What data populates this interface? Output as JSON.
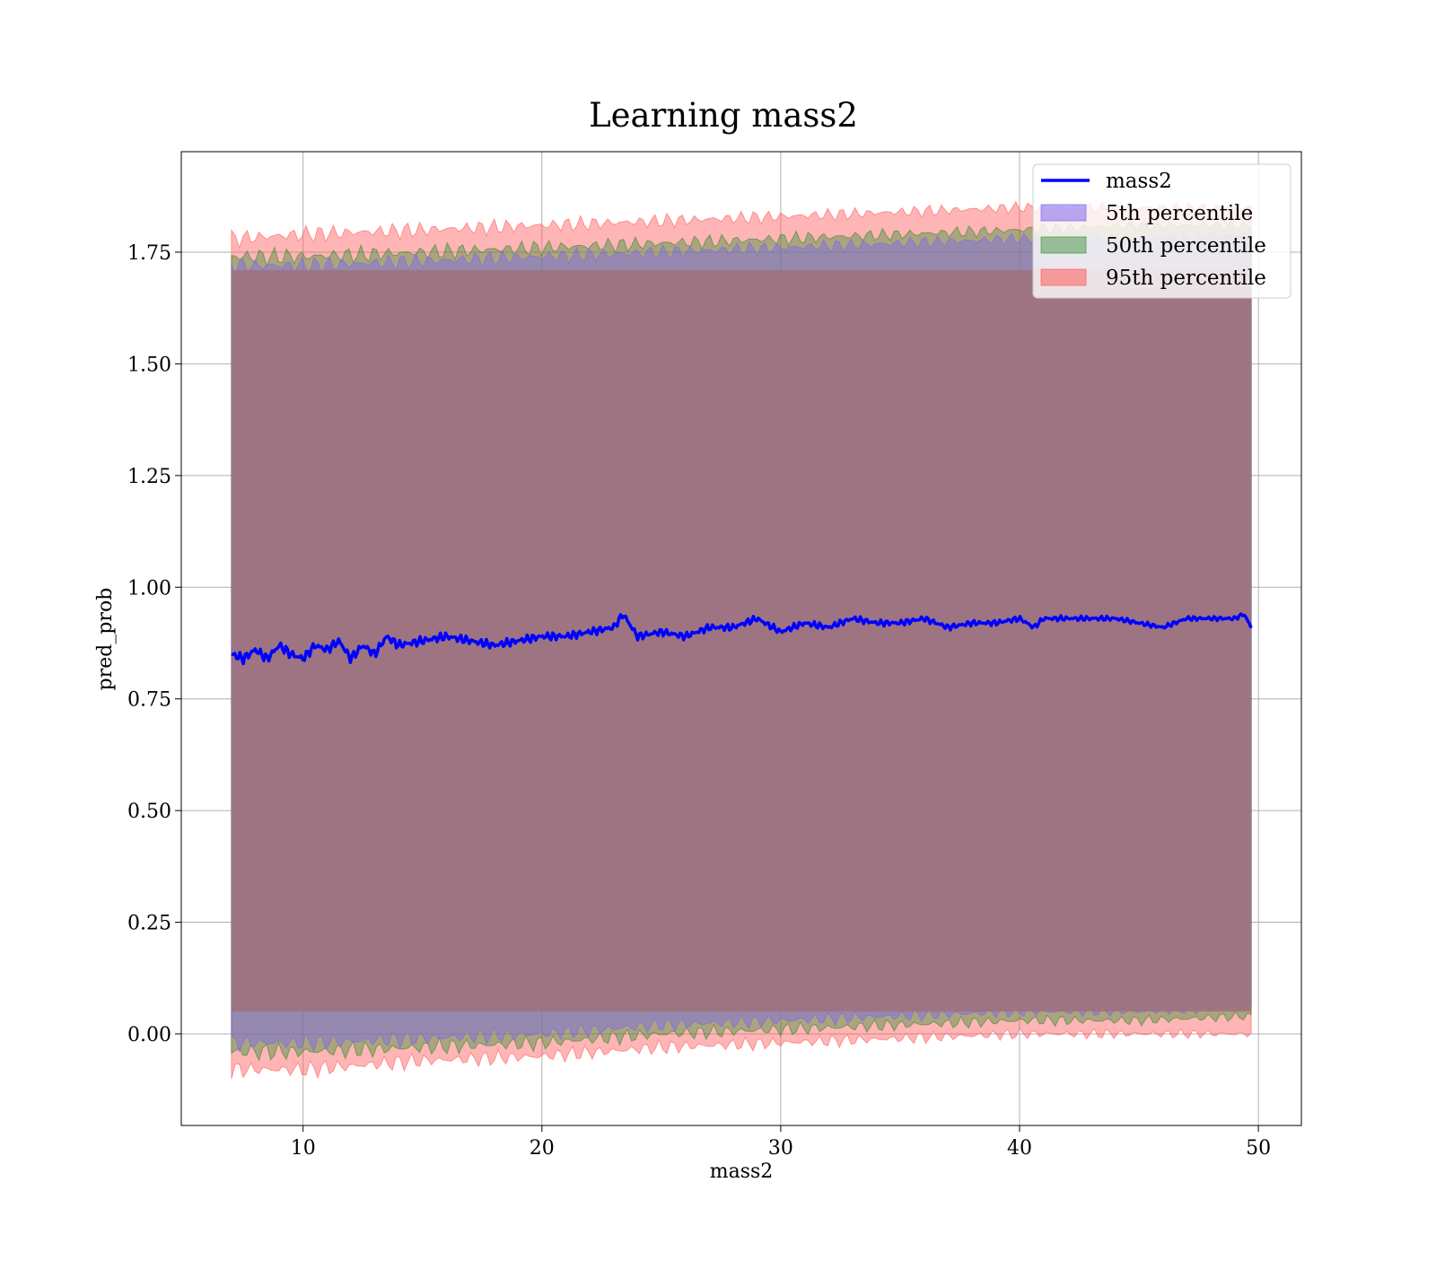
{
  "chart_data": {
    "type": "line",
    "title": "Learning mass2",
    "xlabel": "mass2",
    "ylabel": "pred_prob",
    "xlim": [
      4.9,
      51.8
    ],
    "ylim": [
      -0.205,
      1.975
    ],
    "xticks": [
      10,
      20,
      30,
      40,
      50
    ],
    "yticks": [
      0.0,
      0.25,
      0.5,
      0.75,
      1.0,
      1.25,
      1.5,
      1.75
    ],
    "ytick_labels": [
      "0.00",
      "0.25",
      "0.50",
      "0.75",
      "1.00",
      "1.25",
      "1.50",
      "1.75"
    ],
    "grid": true,
    "legend_position": "top-right",
    "colors": {
      "line": "#0000ff",
      "band_5th": "#7b68ee",
      "band_50th": "#2e8b2e",
      "band_95th": "#ff5c5c",
      "overlap": "#a0717a"
    },
    "series": [
      {
        "name": "mass2",
        "kind": "line",
        "x": [
          7.0,
          7.5,
          8.0,
          8.5,
          9.0,
          9.5,
          10.0,
          10.5,
          11.0,
          11.5,
          12.0,
          12.5,
          13.0,
          13.5,
          14.0,
          15.0,
          16.0,
          17.0,
          18.0,
          19.0,
          20.0,
          21.0,
          22.0,
          23.0,
          23.4,
          24.0,
          25.0,
          26.0,
          27.0,
          28.0,
          29.0,
          30.0,
          31.0,
          32.0,
          33.0,
          34.0,
          35.0,
          36.0,
          37.0,
          38.0,
          39.0,
          40.0,
          40.6,
          41.0,
          42.0,
          43.0,
          44.0,
          45.0,
          46.0,
          47.0,
          48.0,
          49.0,
          49.4,
          49.7
        ],
        "y": [
          0.85,
          0.84,
          0.86,
          0.84,
          0.87,
          0.85,
          0.84,
          0.87,
          0.86,
          0.88,
          0.84,
          0.87,
          0.85,
          0.89,
          0.87,
          0.88,
          0.89,
          0.88,
          0.87,
          0.88,
          0.89,
          0.89,
          0.9,
          0.91,
          0.94,
          0.89,
          0.9,
          0.89,
          0.91,
          0.91,
          0.93,
          0.9,
          0.92,
          0.91,
          0.93,
          0.92,
          0.92,
          0.93,
          0.91,
          0.92,
          0.92,
          0.93,
          0.91,
          0.93,
          0.93,
          0.93,
          0.93,
          0.92,
          0.91,
          0.93,
          0.93,
          0.93,
          0.94,
          0.91
        ]
      },
      {
        "name": "5th percentile",
        "kind": "band",
        "x": [
          7.0,
          10.0,
          15.0,
          20.0,
          25.0,
          30.0,
          35.0,
          40.0,
          45.0,
          49.7
        ],
        "lower": [
          -0.02,
          -0.02,
          -0.01,
          0.0,
          0.02,
          0.03,
          0.04,
          0.05,
          0.05,
          0.06
        ],
        "upper": [
          1.72,
          1.72,
          1.73,
          1.74,
          1.75,
          1.76,
          1.77,
          1.78,
          1.78,
          1.79
        ]
      },
      {
        "name": "50th percentile",
        "kind": "band",
        "x": [
          7.0,
          10.0,
          15.0,
          20.0,
          25.0,
          30.0,
          35.0,
          40.0,
          45.0,
          49.7
        ],
        "lower": [
          -0.04,
          -0.04,
          -0.03,
          -0.02,
          0.0,
          0.01,
          0.02,
          0.03,
          0.03,
          0.04
        ],
        "upper": [
          1.74,
          1.74,
          1.75,
          1.76,
          1.77,
          1.78,
          1.79,
          1.8,
          1.81,
          1.81
        ]
      },
      {
        "name": "95th percentile",
        "kind": "band",
        "x": [
          7.0,
          10.0,
          15.0,
          20.0,
          25.0,
          30.0,
          35.0,
          40.0,
          45.0,
          49.7
        ],
        "lower": [
          -0.08,
          -0.08,
          -0.06,
          -0.05,
          -0.03,
          -0.02,
          -0.01,
          0.0,
          0.0,
          0.0
        ],
        "upper": [
          1.78,
          1.79,
          1.8,
          1.81,
          1.82,
          1.83,
          1.84,
          1.85,
          1.85,
          1.85
        ]
      }
    ]
  }
}
